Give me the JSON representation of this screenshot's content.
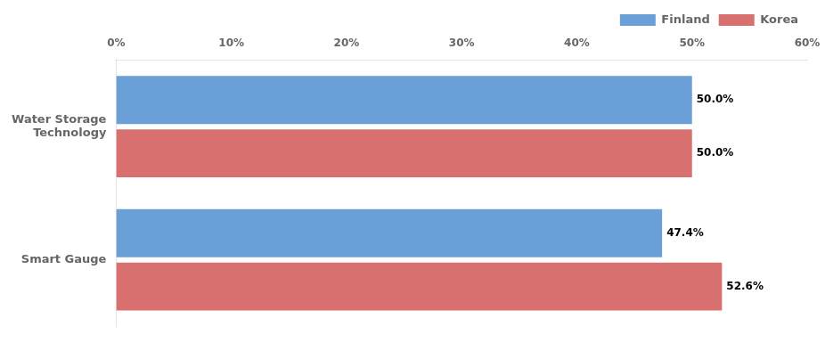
{
  "chart_data": {
    "type": "bar",
    "orientation": "horizontal",
    "categories": [
      "Water Storage\nTechnology",
      "Smart Gauge"
    ],
    "series": [
      {
        "name": "Finland",
        "color": "#6a9fd8",
        "values": [
          50.0,
          47.4
        ],
        "value_labels": [
          "50.0%",
          "47.4%"
        ]
      },
      {
        "name": "Korea",
        "color": "#d97070",
        "values": [
          50.0,
          52.6
        ],
        "value_labels": [
          "50.0%",
          "52.6%"
        ]
      }
    ],
    "xlim": [
      0,
      60
    ],
    "xticks": [
      {
        "value": 0,
        "label": "0%"
      },
      {
        "value": 10,
        "label": "10%"
      },
      {
        "value": 20,
        "label": "20%"
      },
      {
        "value": 30,
        "label": "30%"
      },
      {
        "value": 40,
        "label": "40%"
      },
      {
        "value": 50,
        "label": "50%"
      },
      {
        "value": 60,
        "label": "60%"
      }
    ],
    "grid": false,
    "legend": "top-right",
    "data_labels": true
  }
}
